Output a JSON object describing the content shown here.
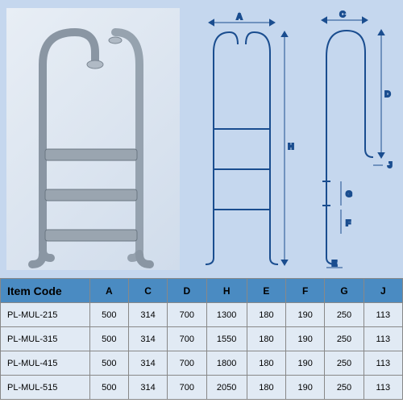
{
  "diagram": {
    "background_color": "#c5d7ee",
    "line_color": "#1a4d8f",
    "label_color": "#1a4d8f",
    "ladder_color": "#9aa5b0",
    "labels": {
      "A": "A",
      "C": "C",
      "D": "D",
      "H": "H",
      "E": "E",
      "F": "F",
      "G": "G",
      "J": "J"
    }
  },
  "table": {
    "header_bg": "#4a8bc2",
    "row_bg": "#e1eaf4",
    "border_color": "#888888",
    "columns": [
      "Item Code",
      "A",
      "C",
      "D",
      "H",
      "E",
      "F",
      "G",
      "J"
    ],
    "col_widths": [
      "110px",
      "48px",
      "48px",
      "48px",
      "50px",
      "48px",
      "48px",
      "48px",
      "48px"
    ],
    "rows": [
      [
        "PL-MUL-215",
        "500",
        "314",
        "700",
        "1300",
        "180",
        "190",
        "250",
        "113"
      ],
      [
        "PL-MUL-315",
        "500",
        "314",
        "700",
        "1550",
        "180",
        "190",
        "250",
        "113"
      ],
      [
        "PL-MUL-415",
        "500",
        "314",
        "700",
        "1800",
        "180",
        "190",
        "250",
        "113"
      ],
      [
        "PL-MUL-515",
        "500",
        "314",
        "700",
        "2050",
        "180",
        "190",
        "250",
        "113"
      ]
    ]
  }
}
